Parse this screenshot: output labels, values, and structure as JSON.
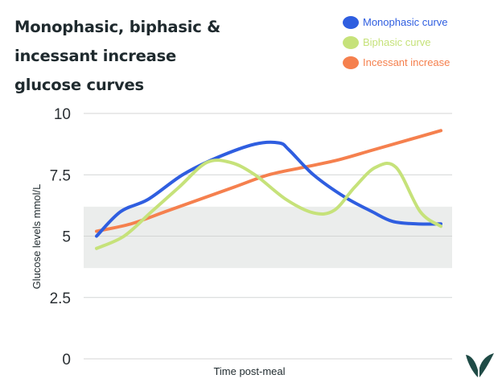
{
  "title": "Monophasic, biphasic & incessant increase glucose curves",
  "colors": {
    "monophasic": "#2f5ee0",
    "biphasic": "#c6e27a",
    "incessant": "#f5804e",
    "band": "#ebedec",
    "grid": "#d4d6d5",
    "logo": "#1f4b46"
  },
  "chart_data": {
    "type": "line",
    "title": "Monophasic, biphasic & incessant increase glucose curves",
    "xlabel": "Time post-meal",
    "ylabel": "Glucose levels mmol/L",
    "ylim": [
      0,
      10
    ],
    "yticks": [
      0,
      2.5,
      5,
      7.5,
      10
    ],
    "ytick_labels": [
      "0",
      "2.5",
      "5",
      "7.5",
      "10"
    ],
    "xlim": [
      0,
      10
    ],
    "normal_band": [
      3.7,
      6.2
    ],
    "grid": true,
    "legend_position": "top-right",
    "series": [
      {
        "name": "Monophasic curve",
        "color": "#2f5ee0",
        "x": [
          0,
          0.7,
          1.5,
          2.5,
          3.5,
          4.6,
          5.3,
          5.6,
          6.3,
          7.2,
          8.0,
          8.6,
          9.3,
          10
        ],
        "y": [
          5.0,
          6.0,
          6.5,
          7.5,
          8.2,
          8.75,
          8.8,
          8.5,
          7.5,
          6.6,
          6.0,
          5.6,
          5.5,
          5.5
        ]
      },
      {
        "name": "Biphasic curve",
        "color": "#c6e27a",
        "x": [
          0,
          0.8,
          1.6,
          2.4,
          3.2,
          3.9,
          4.6,
          5.5,
          6.3,
          6.9,
          7.5,
          8.1,
          8.7,
          9.4,
          10
        ],
        "y": [
          4.5,
          5.0,
          6.0,
          7.0,
          8.0,
          8.0,
          7.5,
          6.5,
          5.95,
          6.05,
          7.0,
          7.8,
          7.8,
          6.0,
          5.4
        ]
      },
      {
        "name": "Incessant increase",
        "color": "#f5804e",
        "x": [
          0,
          1,
          2,
          3,
          4,
          5,
          6,
          7,
          8,
          9,
          10
        ],
        "y": [
          5.2,
          5.5,
          6.0,
          6.5,
          7.0,
          7.5,
          7.8,
          8.1,
          8.5,
          8.9,
          9.3
        ]
      }
    ]
  }
}
